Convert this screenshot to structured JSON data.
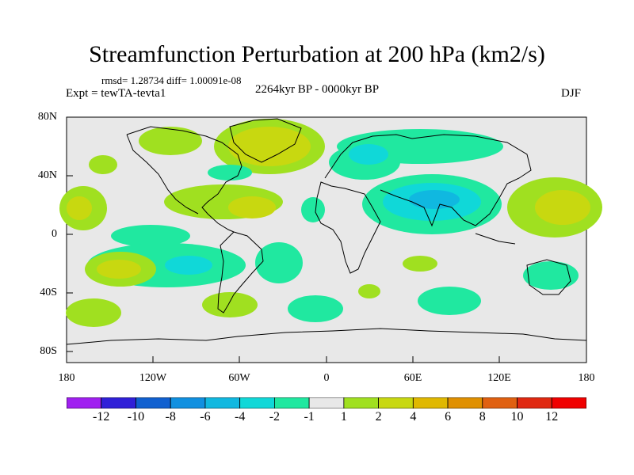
{
  "title": "Streamfunction Perturbation at 200 hPa (km2/s)",
  "stats": "rmsd= 1.28734 diff= 1.00091e-08",
  "experiment": "Expt = tewTA-tevta1",
  "period": "2264kyr BP - 0000kyr BP",
  "season": "DJF",
  "axes": {
    "y_labels": [
      "80N",
      "40N",
      "0",
      "40S",
      "80S"
    ],
    "x_labels": [
      "180",
      "120W",
      "60W",
      "0",
      "60E",
      "120E",
      "180"
    ]
  },
  "colorbar": {
    "labels": [
      "-12",
      "-10",
      "-8",
      "-6",
      "-4",
      "-2",
      "-1",
      "1",
      "2",
      "4",
      "6",
      "8",
      "10",
      "12"
    ],
    "colors": [
      "#a020f0",
      "#3020d8",
      "#1060d0",
      "#1090e0",
      "#10b8e0",
      "#10d8d8",
      "#20e8a0",
      "#e8e8e8",
      "#a0e020",
      "#c8d810",
      "#e0b800",
      "#e09000",
      "#e06010",
      "#e02810",
      "#f00000"
    ]
  }
}
